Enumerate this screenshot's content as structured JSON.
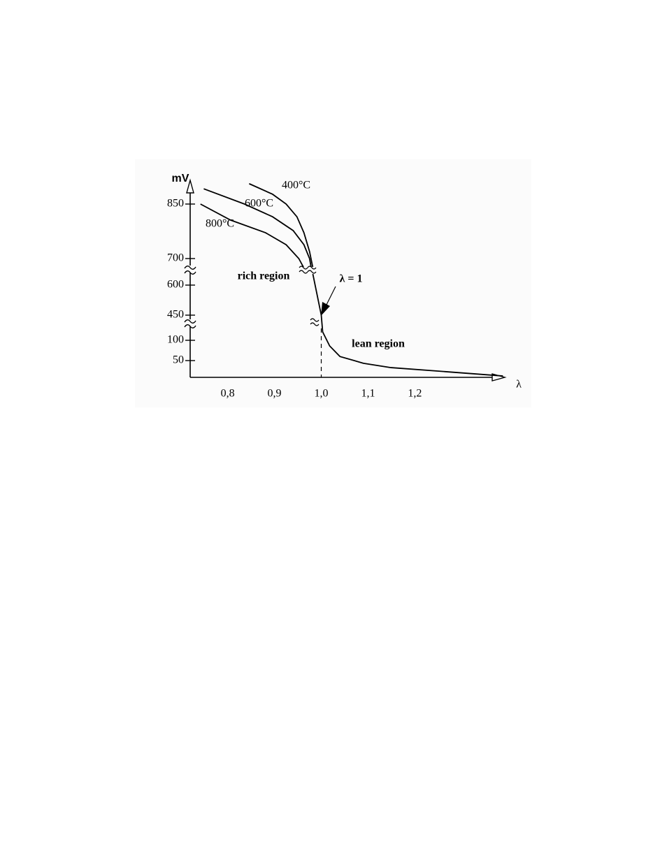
{
  "chart_data": {
    "type": "line",
    "y_axis_label": "mV",
    "x_axis_label": "λ",
    "xlim": [
      0.72,
      1.389
    ],
    "xticks": [
      {
        "value": 0.8,
        "label": "0,8"
      },
      {
        "value": 0.9,
        "label": "0,9"
      },
      {
        "value": 1.0,
        "label": "1,0"
      },
      {
        "value": 1.1,
        "label": "1,1"
      },
      {
        "value": 1.2,
        "label": "1,2"
      }
    ],
    "ylim": [
      0,
      920
    ],
    "yticks": [
      50,
      100,
      450,
      600,
      700,
      850
    ],
    "series": [
      {
        "name": "400°C",
        "color": "#000000",
        "x": [
          0.846,
          0.896,
          0.925,
          0.948,
          0.963,
          0.975,
          0.982
        ],
        "values": [
          906,
          877,
          850,
          815,
          771,
          719,
          666
        ]
      },
      {
        "name": "600°C",
        "color": "#000000",
        "x": [
          0.749,
          0.836,
          0.896,
          0.94,
          0.963,
          0.975,
          0.979
        ],
        "values": [
          892,
          850,
          815,
          777,
          738,
          700,
          661
        ]
      },
      {
        "name": "800°C",
        "color": "#000000",
        "x": [
          0.742,
          0.806,
          0.881,
          0.925,
          0.952,
          0.964
        ],
        "values": [
          850,
          806,
          771,
          738,
          700,
          661
        ]
      },
      {
        "color": "#000000",
        "x": [
          0.982,
          1.0,
          1.003,
          1.018,
          1.04,
          1.09,
          1.149,
          1.284,
          1.388
        ],
        "values": [
          642,
          450,
          217,
          86,
          60,
          42,
          29,
          15,
          4
        ]
      }
    ],
    "annotations": [
      "rich region",
      "lean region",
      "λ = 1"
    ]
  }
}
